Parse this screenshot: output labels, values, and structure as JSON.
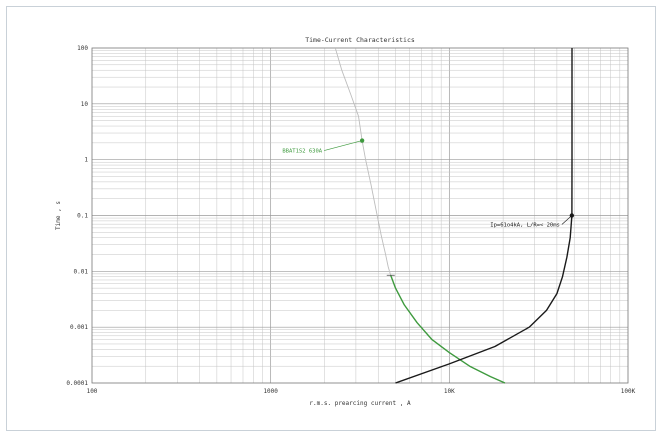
{
  "chart_data": {
    "type": "line",
    "title": "Time-Current Characteristics",
    "xlabel": "r.m.s. prearcing current , A",
    "ylabel": "Time , s",
    "x_scale": "log",
    "y_scale": "log",
    "xlim": [
      100,
      100000
    ],
    "ylim": [
      0.0001,
      100
    ],
    "grid": true,
    "x_ticks": [
      {
        "value": 100,
        "label": "100"
      },
      {
        "value": 1000,
        "label": "1000"
      },
      {
        "value": 10000,
        "label": "10K"
      },
      {
        "value": 100000,
        "label": "100K"
      }
    ],
    "y_ticks": [
      {
        "value": 100,
        "label": "100"
      },
      {
        "value": 10,
        "label": "10"
      },
      {
        "value": 1,
        "label": "1"
      },
      {
        "value": 0.1,
        "label": "0.1"
      },
      {
        "value": 0.01,
        "label": "0.01"
      },
      {
        "value": 0.001,
        "label": "0.001"
      },
      {
        "value": 0.0001,
        "label": "0.0001"
      }
    ],
    "series": [
      {
        "color": "#bdbdbd",
        "points": [
          [
            2300,
            100
          ],
          [
            2500,
            40
          ],
          [
            2800,
            15
          ],
          [
            3100,
            6
          ],
          [
            3250,
            2.2
          ],
          [
            3400,
            1.0
          ],
          [
            3650,
            0.35
          ],
          [
            3900,
            0.12
          ],
          [
            4150,
            0.045
          ],
          [
            4400,
            0.02
          ],
          [
            4550,
            0.012
          ],
          [
            4700,
            0.0085
          ]
        ]
      },
      {
        "color": "#3e9a3e",
        "points": [
          [
            4700,
            0.0085
          ],
          [
            5000,
            0.005
          ],
          [
            5600,
            0.0025
          ],
          [
            6600,
            0.0012
          ],
          [
            8000,
            0.0006
          ],
          [
            10000,
            0.00035
          ],
          [
            13000,
            0.0002
          ],
          [
            17000,
            0.00013
          ],
          [
            20500,
            0.0001
          ]
        ]
      },
      {
        "color": "#1a1a1a",
        "points": [
          [
            5000,
            0.0001
          ],
          [
            10000,
            0.00022
          ],
          [
            18000,
            0.00045
          ],
          [
            28000,
            0.001
          ],
          [
            35000,
            0.002
          ],
          [
            40000,
            0.004
          ],
          [
            43000,
            0.008
          ],
          [
            45500,
            0.018
          ],
          [
            47500,
            0.04
          ],
          [
            48500,
            0.1
          ],
          [
            48600,
            1
          ],
          [
            48600,
            10
          ],
          [
            48600,
            100
          ]
        ]
      }
    ],
    "annotations": [
      {
        "text": "BBAT1S2 630A",
        "x": 3250,
        "y": 2.2,
        "color": "#3e9a3e"
      },
      {
        "text": "Ip=61o4kA, L/R=< 20ms",
        "x": 48500,
        "y": 0.1,
        "color": "#1a1a1a"
      }
    ]
  }
}
